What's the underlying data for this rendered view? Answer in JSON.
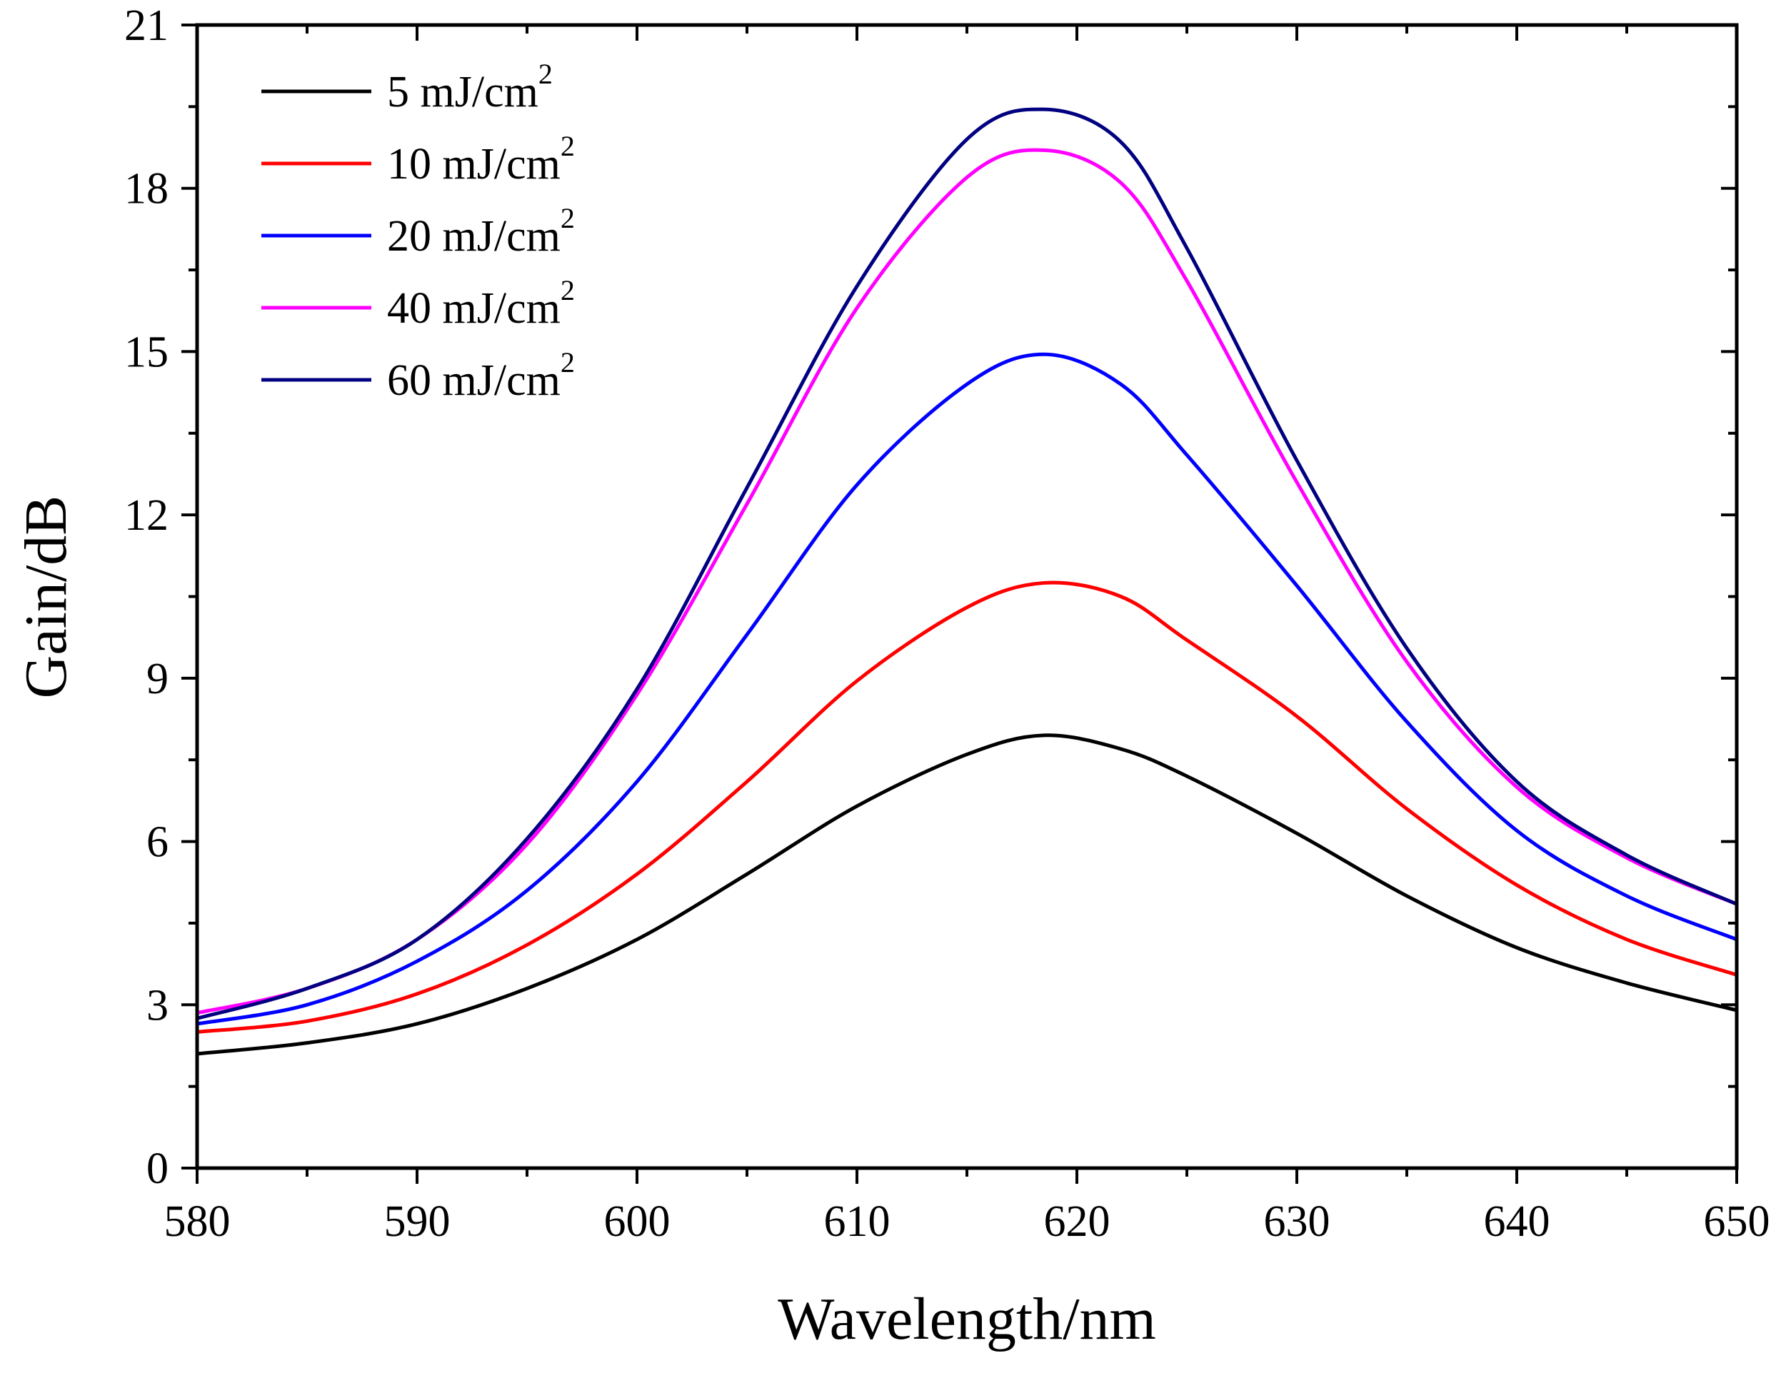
{
  "chart_data": {
    "type": "line",
    "title": "",
    "xlabel": "Wavelength/nm",
    "ylabel": "Gain/dB",
    "xlim": [
      580,
      650
    ],
    "ylim": [
      0,
      21
    ],
    "xticks": [
      580,
      590,
      600,
      610,
      620,
      630,
      640,
      650
    ],
    "yticks": [
      0,
      3,
      6,
      9,
      12,
      15,
      18,
      21
    ],
    "xtick_labels": [
      "580",
      "590",
      "600",
      "610",
      "620",
      "630",
      "640",
      "650"
    ],
    "ytick_labels": [
      "0",
      "3",
      "6",
      "9",
      "12",
      "15",
      "18",
      "21"
    ],
    "grid": false,
    "legend_position": "top-left",
    "x": [
      580,
      585,
      590,
      595,
      600,
      605,
      610,
      615,
      618.5,
      622,
      625,
      630,
      635,
      640,
      645,
      650
    ],
    "series": [
      {
        "name": "5 mJ/cm",
        "unit_sup": "2",
        "color": "#000000",
        "values": [
          2.1,
          2.3,
          2.65,
          3.3,
          4.2,
          5.4,
          6.65,
          7.6,
          7.95,
          7.7,
          7.2,
          6.15,
          5.0,
          4.05,
          3.4,
          2.9
        ]
      },
      {
        "name": "10 mJ/cm",
        "unit_sup": "2",
        "color": "#ff0000",
        "values": [
          2.5,
          2.7,
          3.2,
          4.1,
          5.4,
          7.1,
          8.95,
          10.3,
          10.75,
          10.5,
          9.7,
          8.3,
          6.6,
          5.2,
          4.2,
          3.55
        ]
      },
      {
        "name": "20 mJ/cm",
        "unit_sup": "2",
        "color": "#0000ff",
        "values": [
          2.65,
          3.0,
          3.8,
          5.1,
          7.1,
          9.8,
          12.55,
          14.4,
          14.95,
          14.4,
          13.1,
          10.7,
          8.2,
          6.2,
          5.0,
          4.2
        ]
      },
      {
        "name": "40 mJ/cm",
        "unit_sup": "2",
        "color": "#ff00ff",
        "values": [
          2.85,
          3.3,
          4.2,
          5.95,
          8.7,
          12.2,
          15.8,
          18.2,
          18.7,
          18.1,
          16.3,
          12.6,
          9.3,
          7.0,
          5.7,
          4.85
        ]
      },
      {
        "name": "60 mJ/cm",
        "unit_sup": "2",
        "color": "#000080",
        "values": [
          2.75,
          3.3,
          4.2,
          6.05,
          8.8,
          12.5,
          16.2,
          18.9,
          19.45,
          18.85,
          16.9,
          13.0,
          9.55,
          7.1,
          5.75,
          4.85
        ]
      }
    ]
  }
}
